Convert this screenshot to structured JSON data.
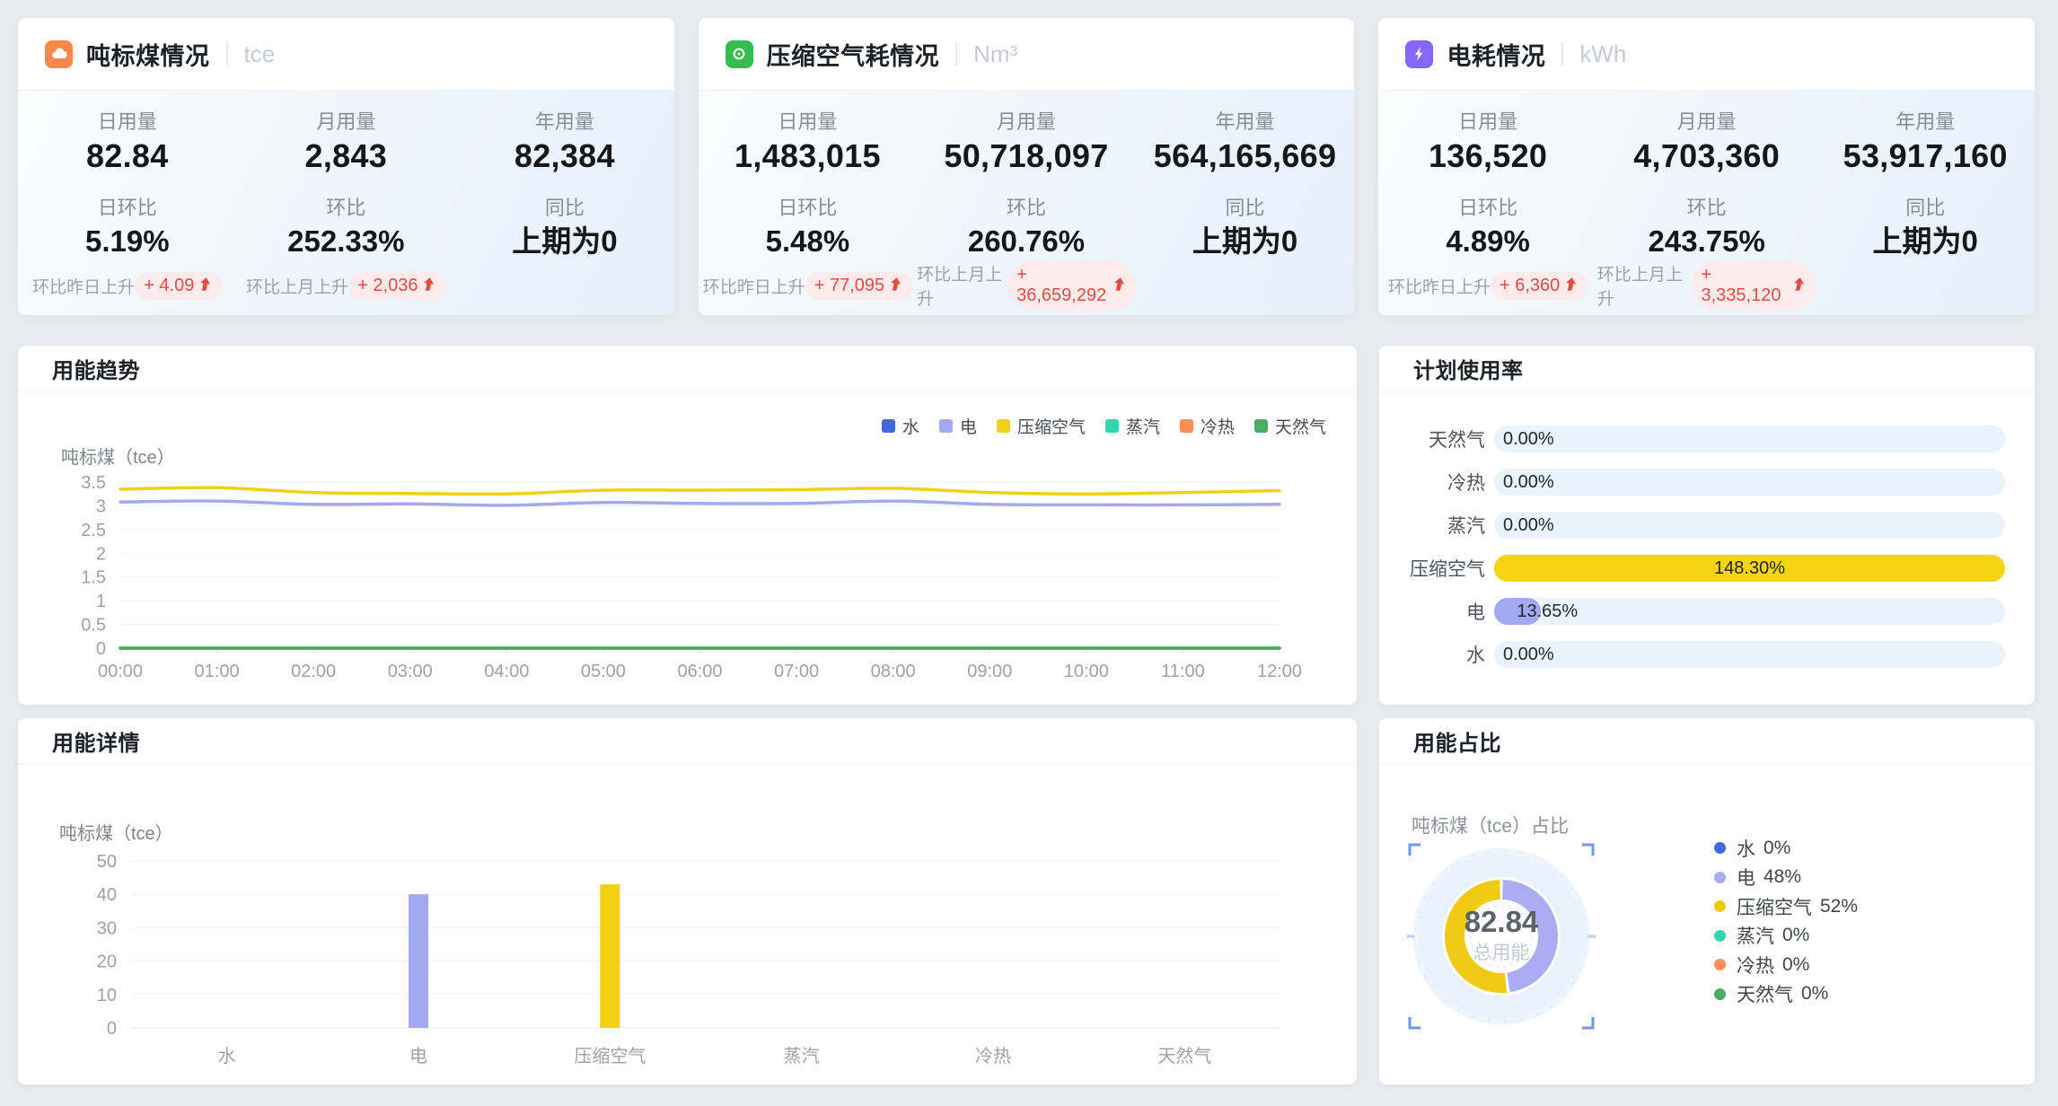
{
  "cards": [
    {
      "title": "吨标煤情况",
      "unit": "tce",
      "icon": "coal-cloud-icon",
      "icon_bg": "#f9874a",
      "stats": [
        {
          "label": "日用量",
          "value": "82.84"
        },
        {
          "label": "月用量",
          "value": "2,843"
        },
        {
          "label": "年用量",
          "value": "82,384"
        }
      ],
      "ratios": [
        {
          "label": "日环比",
          "value": "5.19%"
        },
        {
          "label": "环比",
          "value": "252.33%"
        },
        {
          "label": "同比",
          "value": "上期为0"
        }
      ],
      "badges": [
        {
          "label": "环比昨日上升",
          "value": "+ 4.09"
        },
        {
          "label": "环比上月上升",
          "value": "+ 2,036"
        },
        null
      ]
    },
    {
      "title": "压缩空气耗情况",
      "unit": "Nm³",
      "icon": "compressed-air-icon",
      "icon_bg": "#35bc4c",
      "stats": [
        {
          "label": "日用量",
          "value": "1,483,015"
        },
        {
          "label": "月用量",
          "value": "50,718,097"
        },
        {
          "label": "年用量",
          "value": "564,165,669"
        }
      ],
      "ratios": [
        {
          "label": "日环比",
          "value": "5.48%"
        },
        {
          "label": "环比",
          "value": "260.76%"
        },
        {
          "label": "同比",
          "value": "上期为0"
        }
      ],
      "badges": [
        {
          "label": "环比昨日上升",
          "value": "+ 77,095"
        },
        {
          "label": "环比上月上升",
          "value": "+ 36,659,292"
        },
        null
      ]
    },
    {
      "title": "电耗情况",
      "unit": "kWh",
      "icon": "lightning-bolt-icon",
      "icon_bg": "#8468fb",
      "stats": [
        {
          "label": "日用量",
          "value": "136,520"
        },
        {
          "label": "月用量",
          "value": "4,703,360"
        },
        {
          "label": "年用量",
          "value": "53,917,160"
        }
      ],
      "ratios": [
        {
          "label": "日环比",
          "value": "4.89%"
        },
        {
          "label": "环比",
          "value": "243.75%"
        },
        {
          "label": "同比",
          "value": "上期为0"
        }
      ],
      "badges": [
        {
          "label": "环比昨日上升",
          "value": "+ 6,360"
        },
        {
          "label": "环比上月上升",
          "value": "+ 3,335,120"
        },
        null
      ]
    }
  ],
  "trend_panel": {
    "title": "用能趋势",
    "y_title": "吨标煤（tce）"
  },
  "plan_panel": {
    "title": "计划使用率"
  },
  "detail_panel": {
    "title": "用能详情",
    "y_title": "吨标煤（tce）"
  },
  "share_panel": {
    "title": "用能占比",
    "subtitle": "吨标煤（tce）占比",
    "center_value": "82.84",
    "center_label": "总用能"
  },
  "chart_data": [
    {
      "id": "trend",
      "type": "line",
      "title": "用能趋势",
      "ylabel": "吨标煤（tce）",
      "ylim": [
        0,
        3.5
      ],
      "y_ticks": [
        0,
        0.5,
        1,
        1.5,
        2,
        2.5,
        3,
        3.5
      ],
      "grid": true,
      "legend_position": "top-right",
      "x": [
        "00:00",
        "01:00",
        "02:00",
        "03:00",
        "04:00",
        "05:00",
        "06:00",
        "07:00",
        "08:00",
        "09:00",
        "10:00",
        "11:00",
        "12:00"
      ],
      "series": [
        {
          "name": "水",
          "color": "#3e6bd9",
          "values": [
            0,
            0,
            0,
            0,
            0,
            0,
            0,
            0,
            0,
            0,
            0,
            0,
            0
          ]
        },
        {
          "name": "电",
          "color": "#a2a8f2",
          "values": [
            3.08,
            3.1,
            3.03,
            3.04,
            3.01,
            3.07,
            3.05,
            3.05,
            3.1,
            3.03,
            3.02,
            3.02,
            3.03
          ]
        },
        {
          "name": "压缩空气",
          "color": "#f2d013",
          "values": [
            3.35,
            3.38,
            3.28,
            3.26,
            3.25,
            3.33,
            3.33,
            3.34,
            3.37,
            3.28,
            3.25,
            3.28,
            3.32
          ]
        },
        {
          "name": "蒸汽",
          "color": "#35d3ae",
          "values": [
            0,
            0,
            0,
            0,
            0,
            0,
            0,
            0,
            0,
            0,
            0,
            0,
            0
          ]
        },
        {
          "name": "冷热",
          "color": "#fb8f5c",
          "values": [
            0,
            0,
            0,
            0,
            0,
            0,
            0,
            0,
            0,
            0,
            0,
            0,
            0
          ]
        },
        {
          "name": "天然气",
          "color": "#47ae63",
          "values": [
            0,
            0,
            0,
            0,
            0,
            0,
            0,
            0,
            0,
            0,
            0,
            0,
            0
          ]
        }
      ]
    },
    {
      "id": "plan",
      "type": "bar",
      "orientation": "horizontal",
      "title": "计划使用率",
      "max": 148.3,
      "rows": [
        {
          "label": "天然气",
          "value": 0,
          "display": "0.00%",
          "color": "#47ae63"
        },
        {
          "label": "冷热",
          "value": 0,
          "display": "0.00%",
          "color": "#fb8f5c"
        },
        {
          "label": "蒸汽",
          "value": 0,
          "display": "0.00%",
          "color": "#35d3ae"
        },
        {
          "label": "压缩空气",
          "value": 148.3,
          "display": "148.30%",
          "color": "#f5d412"
        },
        {
          "label": "电",
          "value": 13.65,
          "display": "13.65%",
          "color": "#a2a8f2"
        },
        {
          "label": "水",
          "value": 0,
          "display": "0.00%",
          "color": "#3e6bd9"
        }
      ]
    },
    {
      "id": "detail",
      "type": "bar",
      "title": "用能详情",
      "ylabel": "吨标煤（tce）",
      "ylim": [
        0,
        50
      ],
      "y_ticks": [
        0,
        10,
        20,
        30,
        40,
        50
      ],
      "categories": [
        "水",
        "电",
        "压缩空气",
        "蒸汽",
        "冷热",
        "天然气"
      ],
      "values": [
        0,
        40,
        43,
        0,
        0,
        0
      ],
      "colors": [
        "#3e6bd9",
        "#a2a8f2",
        "#f2d013",
        "#35d3ae",
        "#fb8f5c",
        "#47ae63"
      ]
    },
    {
      "id": "share",
      "type": "pie",
      "title": "用能占比",
      "center_value": "82.84",
      "center_label": "总用能",
      "slices": [
        {
          "name": "水",
          "pct": 0,
          "display": "0%",
          "color": "#3e6bd9"
        },
        {
          "name": "电",
          "pct": 48,
          "display": "48%",
          "color": "#a9aef2"
        },
        {
          "name": "压缩空气",
          "pct": 52,
          "display": "52%",
          "color": "#f0c913"
        },
        {
          "name": "蒸汽",
          "pct": 0,
          "display": "0%",
          "color": "#35d3ae"
        },
        {
          "name": "冷热",
          "pct": 0,
          "display": "0%",
          "color": "#fb8f5c"
        },
        {
          "name": "天然气",
          "pct": 0,
          "display": "0%",
          "color": "#47ae63"
        }
      ]
    }
  ]
}
